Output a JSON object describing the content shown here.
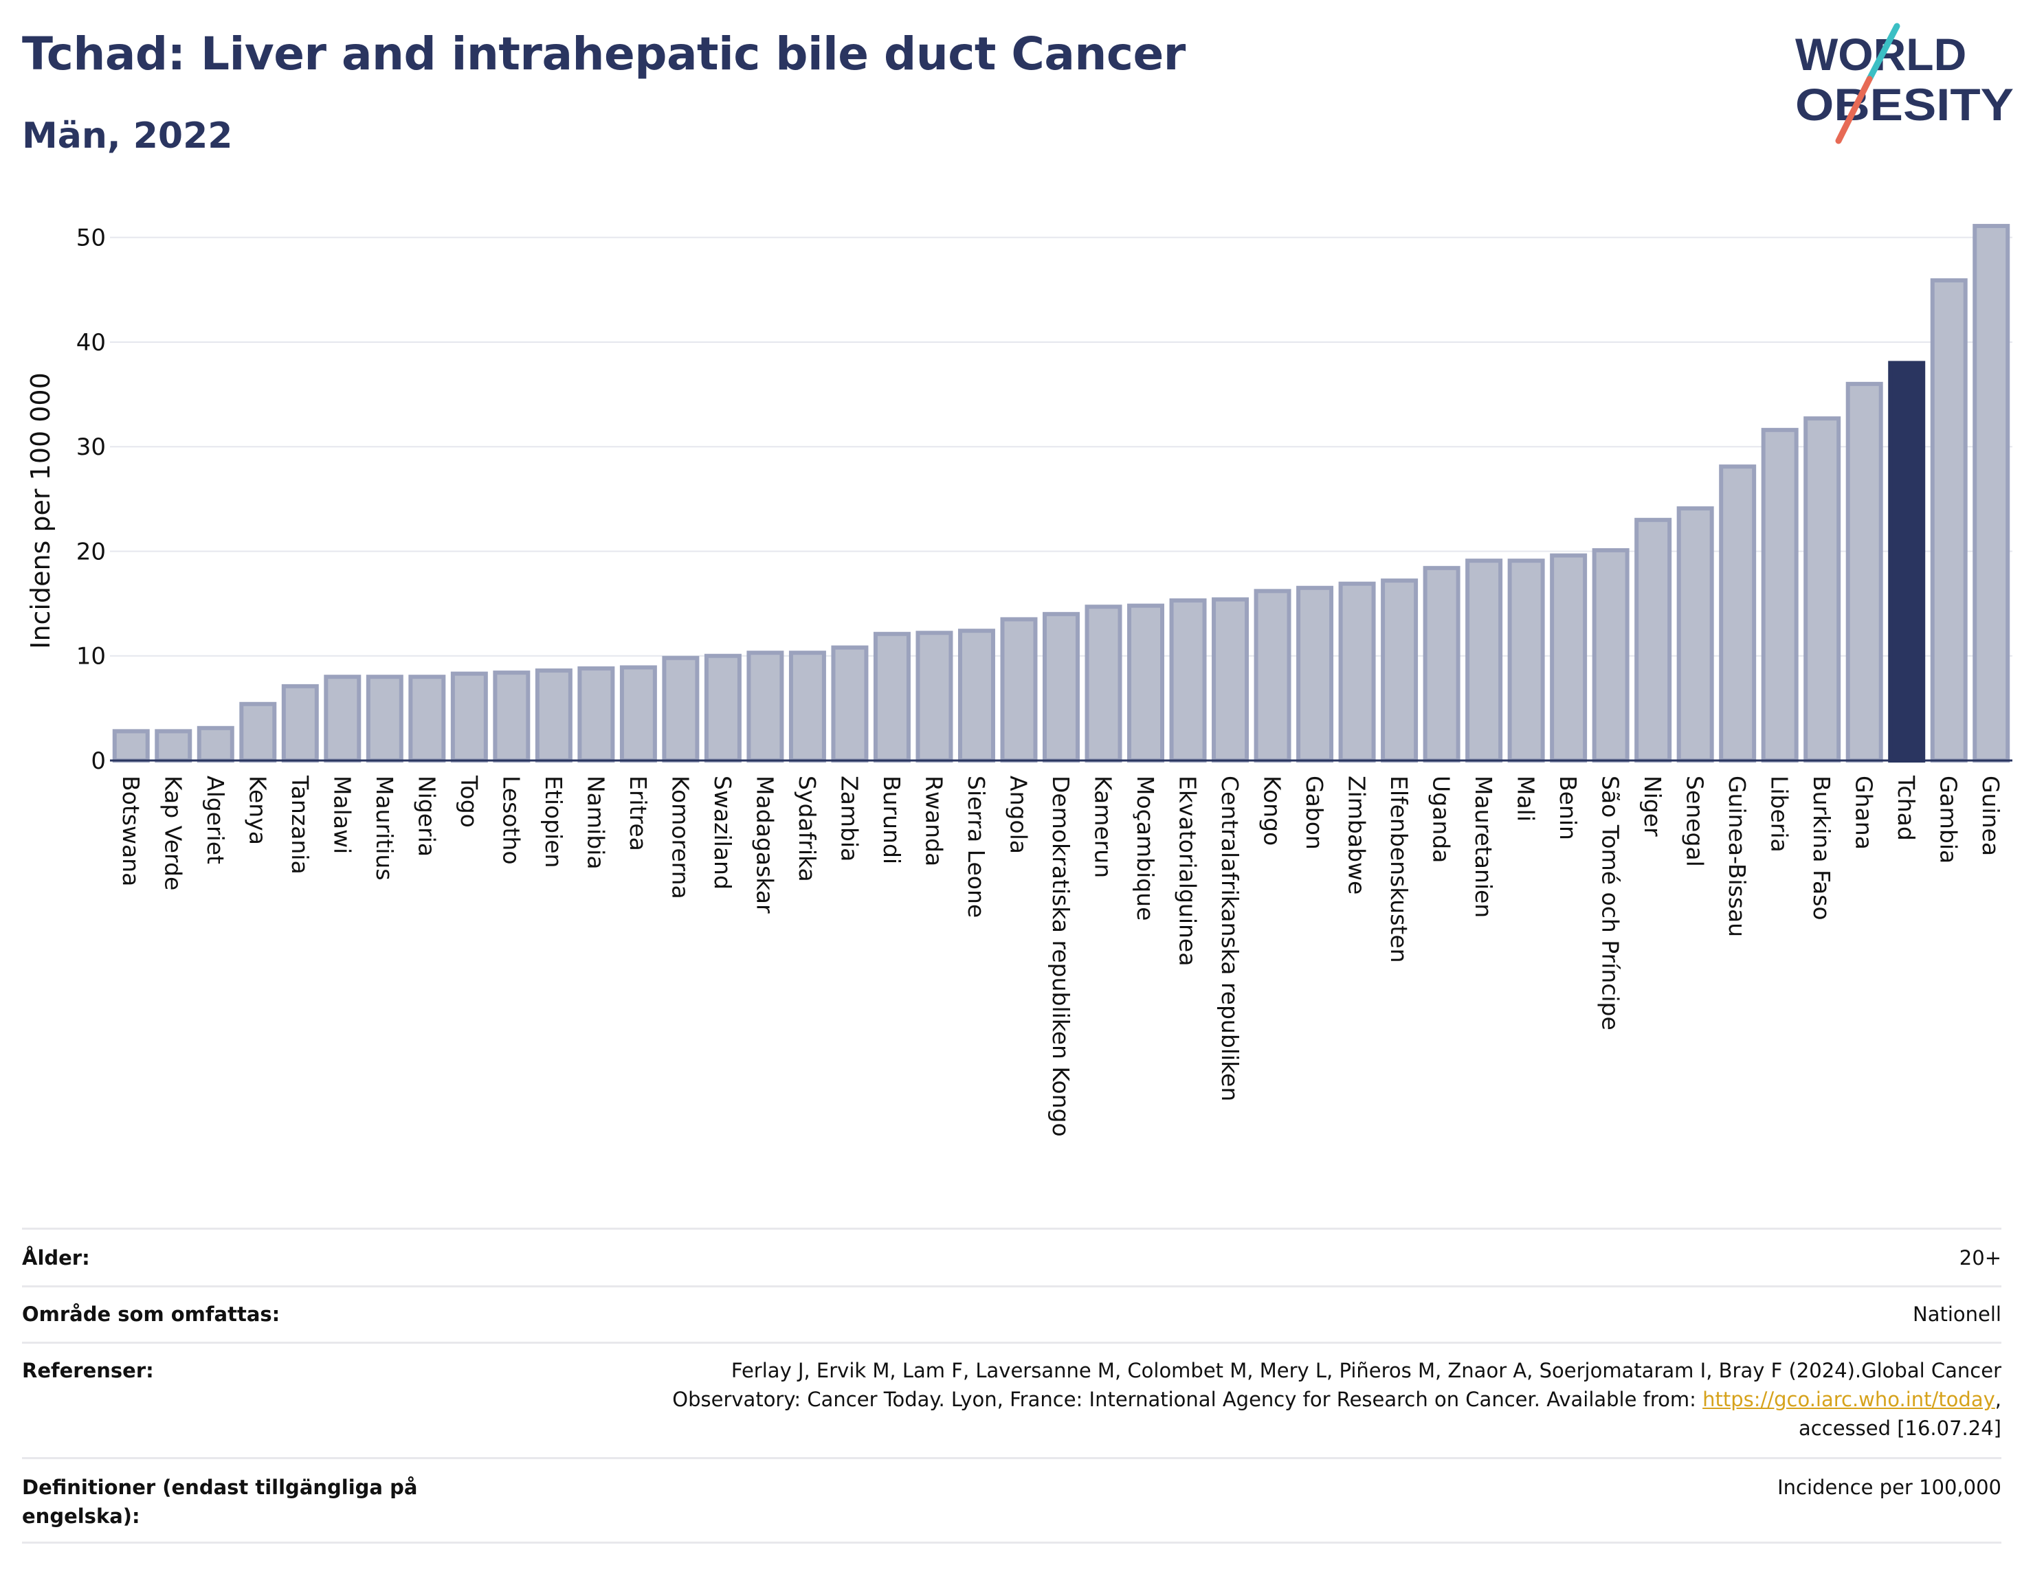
{
  "title": "Tchad: Liver and intrahepatic bile duct Cancer",
  "subtitle": "Män, 2022",
  "logo": {
    "line1": "WORLD",
    "line2": "OBESITY",
    "mark_colors": [
      "#3bbfc4",
      "#e76a55"
    ]
  },
  "colors": {
    "text": "#2a3560",
    "bar_default_fill": "#b8bdcc",
    "bar_default_stroke": "#9ba2bd",
    "bar_highlight": "#2a3560",
    "grid": "#e5e7ee"
  },
  "chart_data": {
    "type": "bar",
    "title": "Tchad: Liver and intrahepatic bile duct Cancer",
    "subtitle": "Män, 2022",
    "xlabel": "",
    "ylabel": "Incidens per 100 000",
    "ylim": [
      0,
      53
    ],
    "yticks": [
      0,
      10,
      20,
      30,
      40,
      50
    ],
    "grid": true,
    "highlight": "Tchad",
    "categories": [
      "Botswana",
      "Kap Verde",
      "Algeriet",
      "Kenya",
      "Tanzania",
      "Malawi",
      "Mauritius",
      "Nigeria",
      "Togo",
      "Lesotho",
      "Etiopien",
      "Namibia",
      "Eritrea",
      "Komorerna",
      "Swaziland",
      "Madagaskar",
      "Sydafrika",
      "Zambia",
      "Burundi",
      "Rwanda",
      "Sierra Leone",
      "Angola",
      "Demokratiska republiken Kongo",
      "Kamerun",
      "Moçambique",
      "Ekvatorialguinea",
      "Centralafrikanska republiken",
      "Kongo",
      "Gabon",
      "Zimbabwe",
      "Elfenbenskusten",
      "Uganda",
      "Mauretanien",
      "Mali",
      "Benin",
      "São Tomé och Príncipe",
      "Niger",
      "Senegal",
      "Guinea-Bissau",
      "Liberia",
      "Burkina Faso",
      "Ghana",
      "Tchad",
      "Gambia",
      "Guinea"
    ],
    "values": [
      2.8,
      2.8,
      3.1,
      5.4,
      7.1,
      8.0,
      8.0,
      8.0,
      8.3,
      8.4,
      8.6,
      8.8,
      8.9,
      9.8,
      10.0,
      10.3,
      10.3,
      10.8,
      12.1,
      12.2,
      12.4,
      13.5,
      14.0,
      14.7,
      14.8,
      15.3,
      15.4,
      16.2,
      16.5,
      16.9,
      17.2,
      18.4,
      19.1,
      19.1,
      19.6,
      20.1,
      23.0,
      24.1,
      28.1,
      31.6,
      32.7,
      36.0,
      38.0,
      45.9,
      51.1
    ]
  },
  "info": {
    "rows": [
      {
        "label": "Ålder:",
        "value": "20+"
      },
      {
        "label": "Område som omfattas:",
        "value": "Nationell"
      },
      {
        "label": "Referenser:",
        "value_line1": "Ferlay J, Ervik M, Lam F, Laversanne M, Colombet M, Mery L, Piñeros M, Znaor A, Soerjomataram I, Bray F (2024).Global Cancer",
        "value_line2_pre": "Observatory: Cancer Today. Lyon, France: International Agency for Research on Cancer. Available from: ",
        "value_link": "https://gco.iarc.who.int/today",
        "value_line2_post": ",",
        "value_line3": "accessed [16.07.24]"
      },
      {
        "label": "Definitioner (endast tillgängliga på engelska):",
        "value": "Incidence per 100,000"
      }
    ]
  }
}
